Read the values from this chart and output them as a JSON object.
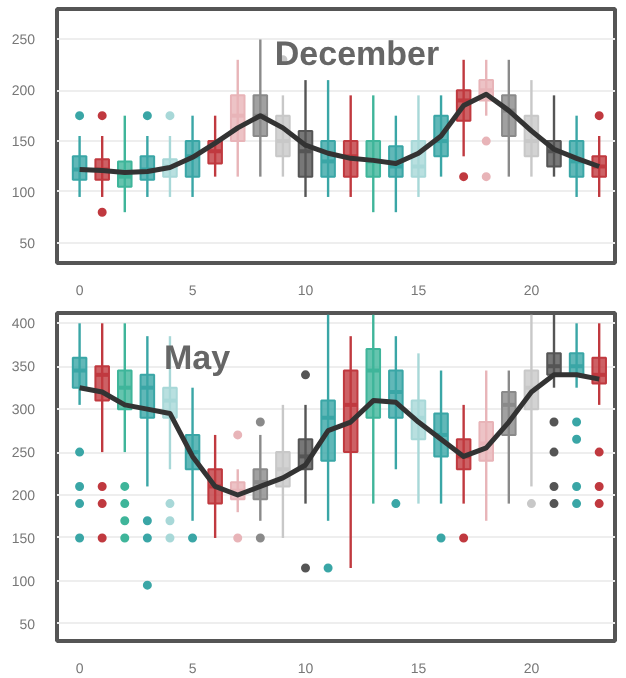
{
  "chart_data": [
    {
      "type": "box",
      "title": "December",
      "x": [
        0,
        1,
        2,
        3,
        4,
        5,
        6,
        7,
        8,
        9,
        10,
        11,
        12,
        13,
        14,
        15,
        16,
        17,
        18,
        19,
        20,
        21,
        22,
        23
      ],
      "xlim": [
        -1,
        23.7
      ],
      "xticks": [
        0,
        5,
        10,
        15,
        20
      ],
      "ylim": [
        30,
        280
      ],
      "yticks": [
        50,
        100,
        150,
        200,
        250
      ],
      "grid": "y",
      "series": [
        {
          "colors": [
            "#3aa6a6",
            "#c0393f",
            "#3fb59a",
            "#3aa6a6",
            "#a8d8d8",
            "#3aa6a6",
            "#c0393f",
            "#e8b4b8",
            "#8a8a8a",
            "#c8c8c8",
            "#555555",
            "#3aa6a6",
            "#c0393f",
            "#3fb59a",
            "#3aa6a6",
            "#a8d8d8",
            "#3aa6a6",
            "#c0393f",
            "#e8b4b8",
            "#8a8a8a",
            "#c8c8c8",
            "#555555",
            "#3aa6a6",
            "#c0393f"
          ],
          "boxes": [
            {
              "low": 95,
              "q1": 112,
              "median": 122,
              "q3": 135,
              "high": 155,
              "outliers": [
                175
              ]
            },
            {
              "low": 95,
              "q1": 112,
              "median": 122,
              "q3": 132,
              "high": 155,
              "outliers": [
                175,
                80
              ]
            },
            {
              "low": 80,
              "q1": 105,
              "median": 115,
              "q3": 130,
              "high": 175
            },
            {
              "low": 95,
              "q1": 112,
              "median": 122,
              "q3": 135,
              "high": 155,
              "outliers": [
                175
              ]
            },
            {
              "low": 95,
              "q1": 115,
              "median": 125,
              "q3": 132,
              "high": 155,
              "outliers": [
                175
              ]
            },
            {
              "low": 95,
              "q1": 115,
              "median": 135,
              "q3": 150,
              "high": 175
            },
            {
              "low": 115,
              "q1": 128,
              "median": 140,
              "q3": 150,
              "high": 175
            },
            {
              "low": 115,
              "q1": 150,
              "median": 175,
              "q3": 195,
              "high": 230
            },
            {
              "low": 115,
              "q1": 155,
              "median": 175,
              "q3": 195,
              "high": 250
            },
            {
              "low": 115,
              "q1": 135,
              "median": 150,
              "q3": 175,
              "high": 195,
              "outliers": [
                230
              ]
            },
            {
              "low": 95,
              "q1": 115,
              "median": 140,
              "q3": 160,
              "high": 210
            },
            {
              "low": 95,
              "q1": 115,
              "median": 130,
              "q3": 150,
              "high": 210
            },
            {
              "low": 95,
              "q1": 115,
              "median": 135,
              "q3": 150,
              "high": 195
            },
            {
              "low": 80,
              "q1": 115,
              "median": 130,
              "q3": 150,
              "high": 195
            },
            {
              "low": 80,
              "q1": 115,
              "median": 125,
              "q3": 145,
              "high": 175
            },
            {
              "low": 95,
              "q1": 115,
              "median": 125,
              "q3": 150,
              "high": 195
            },
            {
              "low": 115,
              "q1": 135,
              "median": 150,
              "q3": 175,
              "high": 195
            },
            {
              "low": 135,
              "q1": 170,
              "median": 190,
              "q3": 200,
              "high": 230,
              "outliers": [
                115
              ]
            },
            {
              "low": 175,
              "q1": 190,
              "median": 200,
              "q3": 210,
              "high": 230,
              "outliers": [
                150,
                115
              ]
            },
            {
              "low": 115,
              "q1": 155,
              "median": 180,
              "q3": 195,
              "high": 230
            },
            {
              "low": 115,
              "q1": 135,
              "median": 150,
              "q3": 175,
              "high": 210
            },
            {
              "low": 115,
              "q1": 125,
              "median": 140,
              "q3": 150,
              "high": 195
            },
            {
              "low": 95,
              "q1": 115,
              "median": 130,
              "q3": 150,
              "high": 175
            },
            {
              "low": 95,
              "q1": 115,
              "median": 125,
              "q3": 135,
              "high": 155,
              "outliers": [
                175
              ]
            }
          ]
        },
        {
          "type": "line",
          "color": "#333333",
          "values": [
            122,
            121,
            119,
            120,
            124,
            134,
            148,
            163,
            175,
            163,
            146,
            138,
            133,
            131,
            128,
            138,
            155,
            185,
            196,
            180,
            160,
            142,
            133,
            125
          ]
        }
      ]
    },
    {
      "type": "box",
      "title": "May",
      "x": [
        0,
        1,
        2,
        3,
        4,
        5,
        6,
        7,
        8,
        9,
        10,
        11,
        12,
        13,
        14,
        15,
        16,
        17,
        18,
        19,
        20,
        21,
        22,
        23
      ],
      "xlim": [
        -1,
        23.7
      ],
      "xticks": [
        0,
        5,
        10,
        15,
        20
      ],
      "ylim": [
        30,
        412
      ],
      "yticks": [
        50,
        100,
        150,
        200,
        250,
        300,
        350,
        400
      ],
      "grid": "y",
      "series": [
        {
          "colors": [
            "#3aa6a6",
            "#c0393f",
            "#3fb59a",
            "#3aa6a6",
            "#a8d8d8",
            "#3aa6a6",
            "#c0393f",
            "#e8b4b8",
            "#8a8a8a",
            "#c8c8c8",
            "#555555",
            "#3aa6a6",
            "#c0393f",
            "#3fb59a",
            "#3aa6a6",
            "#a8d8d8",
            "#3aa6a6",
            "#c0393f",
            "#e8b4b8",
            "#8a8a8a",
            "#c8c8c8",
            "#555555",
            "#3aa6a6",
            "#c0393f"
          ],
          "boxes": [
            {
              "low": 305,
              "q1": 325,
              "median": 345,
              "q3": 360,
              "high": 400,
              "outliers": [
                250,
                210,
                190,
                150
              ]
            },
            {
              "low": 250,
              "q1": 310,
              "median": 340,
              "q3": 350,
              "high": 400,
              "outliers": [
                210,
                190,
                150
              ]
            },
            {
              "low": 250,
              "q1": 300,
              "median": 325,
              "q3": 345,
              "high": 400,
              "outliers": [
                210,
                190,
                170,
                150
              ]
            },
            {
              "low": 210,
              "q1": 290,
              "median": 325,
              "q3": 340,
              "high": 385,
              "outliers": [
                170,
                150,
                95
              ]
            },
            {
              "low": 230,
              "q1": 290,
              "median": 310,
              "q3": 325,
              "high": 385,
              "outliers": [
                190,
                170,
                150
              ]
            },
            {
              "low": 170,
              "q1": 230,
              "median": 250,
              "q3": 270,
              "high": 325,
              "outliers": [
                150
              ]
            },
            {
              "low": 150,
              "q1": 190,
              "median": 210,
              "q3": 230,
              "high": 270
            },
            {
              "low": 180,
              "q1": 195,
              "median": 205,
              "q3": 215,
              "high": 230,
              "outliers": [
                270,
                150
              ]
            },
            {
              "low": 170,
              "q1": 195,
              "median": 215,
              "q3": 230,
              "high": 270,
              "outliers": [
                285,
                150
              ]
            },
            {
              "low": 150,
              "q1": 210,
              "median": 230,
              "q3": 250,
              "high": 305
            },
            {
              "low": 190,
              "q1": 230,
              "median": 245,
              "q3": 265,
              "high": 305,
              "outliers": [
                340,
                115
              ]
            },
            {
              "low": 170,
              "q1": 240,
              "median": 290,
              "q3": 310,
              "high": 410,
              "outliers": [
                115
              ]
            },
            {
              "low": 115,
              "q1": 250,
              "median": 305,
              "q3": 345,
              "high": 385
            },
            {
              "low": 190,
              "q1": 290,
              "median": 345,
              "q3": 370,
              "high": 410
            },
            {
              "low": 230,
              "q1": 290,
              "median": 320,
              "q3": 345,
              "high": 385,
              "outliers": [
                190
              ]
            },
            {
              "low": 190,
              "q1": 265,
              "median": 290,
              "q3": 310,
              "high": 365
            },
            {
              "low": 190,
              "q1": 245,
              "median": 270,
              "q3": 295,
              "high": 345,
              "outliers": [
                150
              ]
            },
            {
              "low": 190,
              "q1": 230,
              "median": 245,
              "q3": 265,
              "high": 305,
              "outliers": [
                150
              ]
            },
            {
              "low": 170,
              "q1": 240,
              "median": 260,
              "q3": 285,
              "high": 345
            },
            {
              "low": 190,
              "q1": 270,
              "median": 305,
              "q3": 320,
              "high": 345
            },
            {
              "low": 210,
              "q1": 300,
              "median": 325,
              "q3": 345,
              "high": 410,
              "outliers": [
                190
              ]
            },
            {
              "low": 325,
              "q1": 340,
              "median": 350,
              "q3": 365,
              "high": 410,
              "outliers": [
                285,
                250,
                210,
                190
              ]
            },
            {
              "low": 325,
              "q1": 340,
              "median": 350,
              "q3": 365,
              "high": 400,
              "outliers": [
                285,
                265,
                210,
                190
              ]
            },
            {
              "low": 305,
              "q1": 330,
              "median": 340,
              "q3": 360,
              "high": 400,
              "outliers": [
                250,
                210,
                190
              ]
            }
          ]
        },
        {
          "type": "line",
          "color": "#333333",
          "values": [
            325,
            320,
            305,
            300,
            295,
            245,
            210,
            200,
            210,
            220,
            235,
            275,
            285,
            310,
            308,
            285,
            265,
            245,
            255,
            285,
            320,
            340,
            340,
            335
          ]
        }
      ]
    }
  ]
}
